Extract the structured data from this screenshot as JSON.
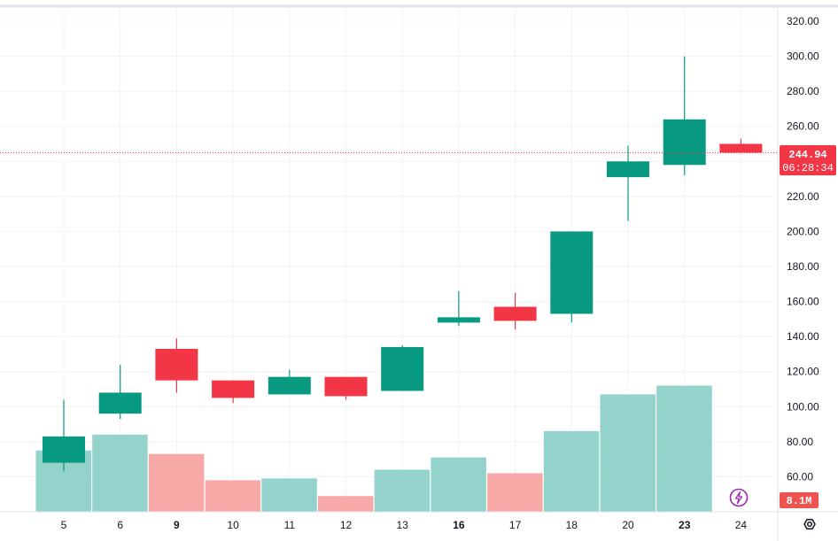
{
  "chart_data": {
    "type": "candlestick",
    "x_labels": [
      "5",
      "6",
      "9",
      "10",
      "11",
      "12",
      "13",
      "16",
      "17",
      "18",
      "20",
      "23",
      "24"
    ],
    "bold_labels": [
      "9",
      "16",
      "23"
    ],
    "candles": [
      {
        "label": "5",
        "open": 68,
        "high": 104,
        "low": 63,
        "close": 83,
        "volume": 75
      },
      {
        "label": "6",
        "open": 96,
        "high": 124,
        "low": 93,
        "close": 108,
        "volume": 84
      },
      {
        "label": "9",
        "open": 133,
        "high": 139,
        "low": 108,
        "close": 115,
        "volume": 73
      },
      {
        "label": "10",
        "open": 115,
        "high": 115,
        "low": 102,
        "close": 105,
        "volume": 58
      },
      {
        "label": "11",
        "open": 107,
        "high": 121,
        "low": 107,
        "close": 117,
        "volume": 59
      },
      {
        "label": "12",
        "open": 117,
        "high": 117,
        "low": 104,
        "close": 106,
        "volume": 49
      },
      {
        "label": "13",
        "open": 109,
        "high": 135,
        "low": 109,
        "close": 134,
        "volume": 64
      },
      {
        "label": "16",
        "open": 148,
        "high": 166,
        "low": 146,
        "close": 151,
        "volume": 71
      },
      {
        "label": "17",
        "open": 157,
        "high": 165,
        "low": 144,
        "close": 149,
        "volume": 62
      },
      {
        "label": "18",
        "open": 153,
        "high": 200,
        "low": 148,
        "close": 200,
        "volume": 86
      },
      {
        "label": "20",
        "open": 231,
        "high": 249,
        "low": 206,
        "close": 240,
        "volume": 107
      },
      {
        "label": "23",
        "open": 238,
        "high": 300,
        "low": 232,
        "close": 264,
        "volume": 112
      },
      {
        "label": "24",
        "open": 250,
        "high": 253,
        "low": 244.94,
        "close": 244.94,
        "volume": 5
      }
    ],
    "y_ticks": [
      "60.00",
      "80.00",
      "100.00",
      "120.00",
      "140.00",
      "160.00",
      "180.00",
      "200.00",
      "220.00",
      "240.00",
      "260.00",
      "280.00",
      "300.00",
      "320.00"
    ],
    "y_range": [
      40,
      325
    ],
    "last_price": 244.94,
    "last_price_label": "244.94",
    "countdown": "06:28:34",
    "volume_label": "8.1M",
    "grid": true
  },
  "colors": {
    "up": "#089981",
    "down": "#f23645",
    "up_volume": "#93d3cb",
    "down_volume": "#f7a9a8",
    "grid": "#f0f3fa",
    "price_line": "#f23645",
    "volume_tag": "#ef5350",
    "lightning": "#9c27b0"
  },
  "icons": {
    "settings": "gear-icon",
    "lightning": "lightning-icon"
  }
}
